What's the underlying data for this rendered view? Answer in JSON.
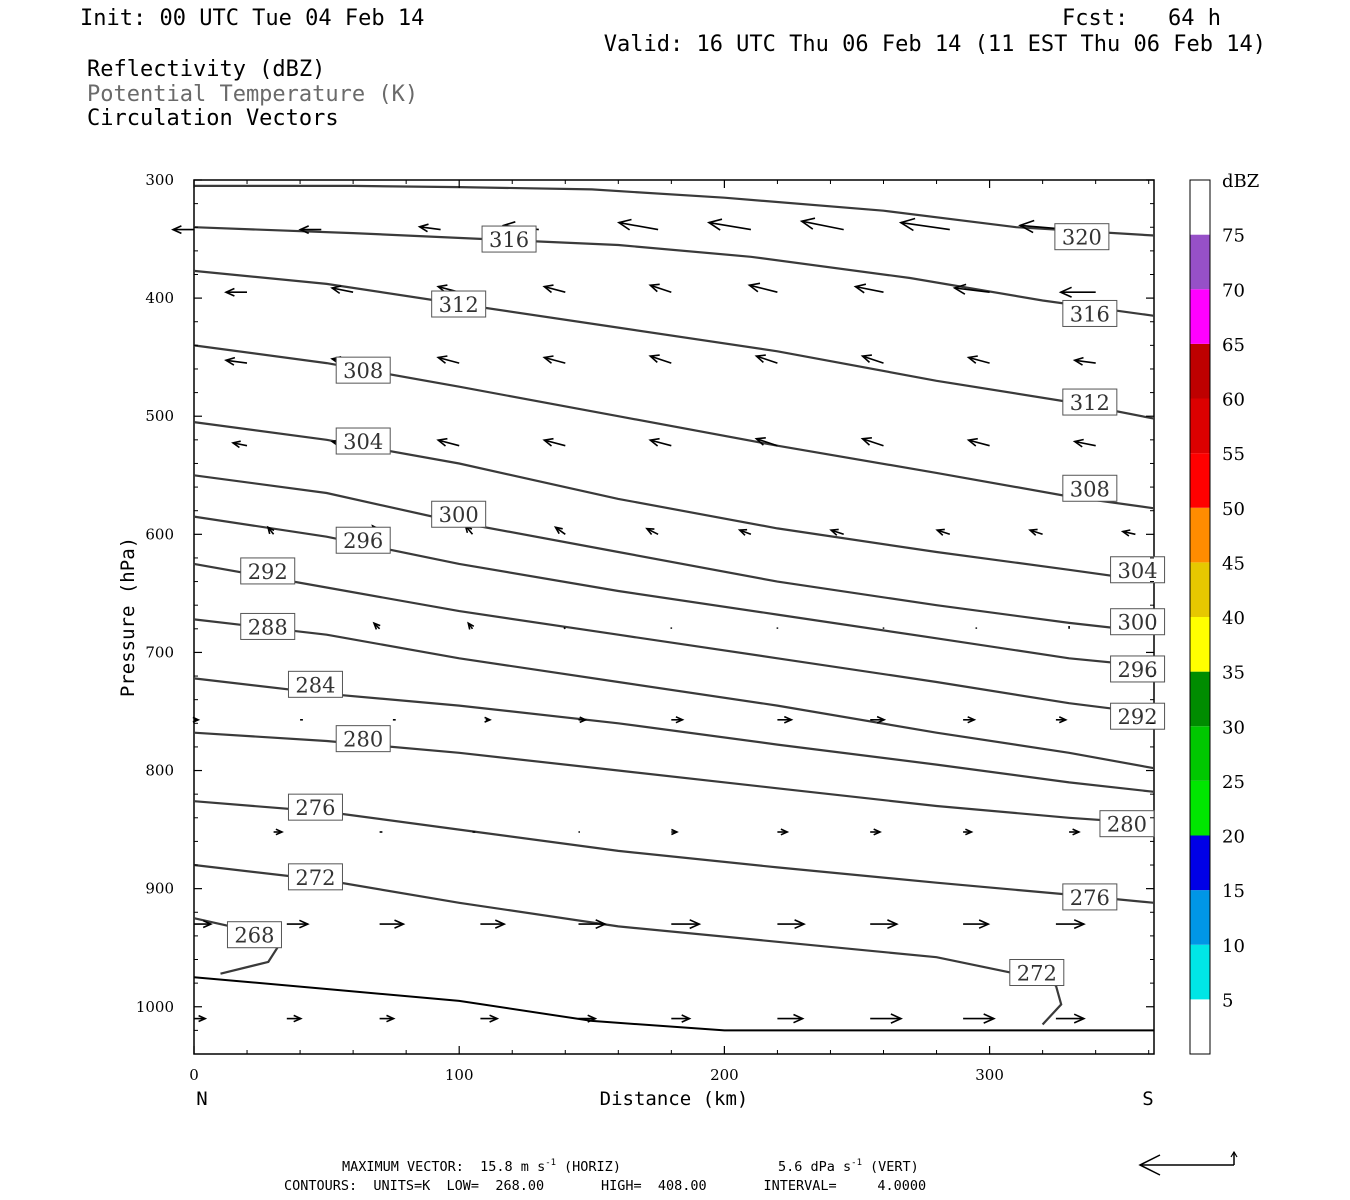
{
  "header": {
    "init": "Init: 00 UTC Tue 04 Feb 14",
    "fcst": "Fcst:   64 h",
    "valid": "Valid: 16 UTC Thu 06 Feb 14 (11 EST Thu 06 Feb 14)",
    "fields": [
      {
        "label": "Reflectivity (dBZ)",
        "color": "#000000"
      },
      {
        "label": "Potential Temperature (K)",
        "color": "#6a6a6a"
      },
      {
        "label": "Circulation Vectors",
        "color": "#000000"
      }
    ]
  },
  "chart_data": {
    "type": "line",
    "title": "",
    "xlabel": "Distance (km)",
    "ylabel": "Pressure (hPa)",
    "xlim": [
      0,
      362
    ],
    "ylim": [
      1040,
      300
    ],
    "y_inverted": true,
    "x_ticks": [
      "0",
      "100",
      "200",
      "300"
    ],
    "y_ticks": [
      "300",
      "400",
      "500",
      "600",
      "700",
      "800",
      "900",
      "1000"
    ],
    "x_end_labels": {
      "left": "N",
      "right": "S"
    },
    "isentropes": [
      {
        "theta": "320",
        "points": [
          [
            0,
            305
          ],
          [
            60,
            305
          ],
          [
            100,
            306
          ],
          [
            150,
            308
          ],
          [
            200,
            315
          ],
          [
            260,
            326
          ],
          [
            310,
            340
          ],
          [
            362,
            347
          ]
        ],
        "label_at": [
          325,
          348
        ]
      },
      {
        "theta": "316",
        "points": [
          [
            0,
            340
          ],
          [
            60,
            345
          ],
          [
            110,
            350
          ],
          [
            160,
            355
          ],
          [
            210,
            365
          ],
          [
            270,
            383
          ],
          [
            320,
            402
          ],
          [
            362,
            415
          ]
        ],
        "labels_at": [
          [
            109,
            350
          ],
          [
            328,
            413
          ]
        ]
      },
      {
        "theta": "312",
        "points": [
          [
            0,
            377
          ],
          [
            50,
            388
          ],
          [
            100,
            405
          ],
          [
            160,
            425
          ],
          [
            220,
            445
          ],
          [
            280,
            470
          ],
          [
            330,
            488
          ],
          [
            362,
            502
          ]
        ],
        "labels_at": [
          [
            90,
            405
          ],
          [
            328,
            488
          ]
        ]
      },
      {
        "theta": "308",
        "points": [
          [
            0,
            440
          ],
          [
            50,
            455
          ],
          [
            100,
            475
          ],
          [
            160,
            500
          ],
          [
            220,
            525
          ],
          [
            280,
            548
          ],
          [
            330,
            568
          ],
          [
            362,
            578
          ]
        ],
        "labels_at": [
          [
            54,
            461
          ],
          [
            328,
            561
          ]
        ]
      },
      {
        "theta": "304",
        "points": [
          [
            0,
            505
          ],
          [
            50,
            520
          ],
          [
            100,
            540
          ],
          [
            160,
            570
          ],
          [
            220,
            595
          ],
          [
            280,
            615
          ],
          [
            330,
            630
          ],
          [
            362,
            640
          ]
        ],
        "labels_at": [
          [
            54,
            521
          ],
          [
            346,
            630
          ]
        ]
      },
      {
        "theta": "300",
        "points": [
          [
            0,
            550
          ],
          [
            50,
            565
          ],
          [
            100,
            590
          ],
          [
            160,
            615
          ],
          [
            220,
            640
          ],
          [
            280,
            660
          ],
          [
            330,
            675
          ],
          [
            362,
            683
          ]
        ],
        "labels_at": [
          [
            90,
            583
          ],
          [
            346,
            674
          ]
        ]
      },
      {
        "theta": "296",
        "points": [
          [
            0,
            585
          ],
          [
            50,
            602
          ],
          [
            100,
            625
          ],
          [
            160,
            648
          ],
          [
            220,
            668
          ],
          [
            280,
            688
          ],
          [
            330,
            705
          ],
          [
            362,
            712
          ]
        ],
        "labels_at": [
          [
            54,
            605
          ],
          [
            346,
            714
          ]
        ]
      },
      {
        "theta": "292",
        "points": [
          [
            0,
            625
          ],
          [
            50,
            645
          ],
          [
            100,
            665
          ],
          [
            160,
            685
          ],
          [
            220,
            705
          ],
          [
            280,
            725
          ],
          [
            330,
            743
          ],
          [
            362,
            752
          ]
        ],
        "labels_at": [
          [
            18,
            631
          ],
          [
            346,
            754
          ]
        ]
      },
      {
        "theta": "288",
        "points": [
          [
            0,
            672
          ],
          [
            50,
            685
          ],
          [
            100,
            705
          ],
          [
            160,
            725
          ],
          [
            220,
            745
          ],
          [
            280,
            768
          ],
          [
            330,
            785
          ],
          [
            362,
            798
          ]
        ],
        "labels_at": [
          [
            18,
            678
          ]
        ]
      },
      {
        "theta": "284",
        "points": [
          [
            0,
            722
          ],
          [
            50,
            735
          ],
          [
            100,
            745
          ],
          [
            160,
            760
          ],
          [
            220,
            778
          ],
          [
            280,
            795
          ],
          [
            330,
            810
          ],
          [
            362,
            818
          ]
        ],
        "labels_at": [
          [
            36,
            727
          ]
        ]
      },
      {
        "theta": "280",
        "points": [
          [
            0,
            768
          ],
          [
            50,
            775
          ],
          [
            100,
            785
          ],
          [
            160,
            800
          ],
          [
            220,
            815
          ],
          [
            280,
            830
          ],
          [
            330,
            840
          ],
          [
            362,
            845
          ]
        ],
        "labels_at": [
          [
            54,
            773
          ],
          [
            342,
            845
          ]
        ]
      },
      {
        "theta": "276",
        "points": [
          [
            0,
            826
          ],
          [
            50,
            835
          ],
          [
            100,
            850
          ],
          [
            160,
            868
          ],
          [
            220,
            882
          ],
          [
            280,
            895
          ],
          [
            330,
            905
          ],
          [
            362,
            912
          ]
        ],
        "labels_at": [
          [
            36,
            831
          ],
          [
            328,
            907
          ]
        ]
      },
      {
        "theta": "272",
        "points": [
          [
            0,
            880
          ],
          [
            50,
            893
          ],
          [
            100,
            912
          ],
          [
            160,
            932
          ],
          [
            220,
            945
          ],
          [
            280,
            958
          ],
          [
            310,
            972
          ],
          [
            325,
            982
          ],
          [
            327,
            998
          ],
          [
            320,
            1015
          ]
        ],
        "labels_at": [
          [
            36,
            890
          ],
          [
            308,
            971
          ]
        ]
      },
      {
        "theta": "268",
        "points": [
          [
            0,
            925
          ],
          [
            20,
            935
          ],
          [
            32,
            948
          ],
          [
            28,
            962
          ],
          [
            10,
            972
          ]
        ],
        "labels_at": [
          [
            13,
            939
          ]
        ]
      }
    ],
    "surface": {
      "points": [
        [
          0,
          975
        ],
        [
          50,
          985
        ],
        [
          100,
          995
        ],
        [
          150,
          1012
        ],
        [
          200,
          1020
        ],
        [
          362,
          1020
        ]
      ]
    },
    "vector_rows": [
      {
        "p": 342,
        "x": [
          0,
          48,
          93,
          130,
          175,
          210,
          245,
          285,
          330
        ],
        "u": [
          -1.5,
          -1.5,
          -1.5,
          -2.5,
          -2.8,
          -3,
          -3,
          -3.5,
          -3.5
        ],
        "v": [
          0,
          0,
          -0.2,
          -0.3,
          -0.5,
          -0.5,
          -0.6,
          -0.5,
          -0.3
        ]
      },
      {
        "p": 395,
        "x": [
          20,
          60,
          100,
          140,
          180,
          220,
          260,
          300,
          340
        ],
        "u": [
          -1.5,
          -1.5,
          -1.5,
          -1.5,
          -1.5,
          -2,
          -2,
          -2.5,
          -2.5
        ],
        "v": [
          0,
          -0.3,
          -0.4,
          -0.4,
          -0.5,
          -0.5,
          -0.4,
          -0.3,
          0
        ]
      },
      {
        "p": 455,
        "x": [
          20,
          60,
          100,
          140,
          180,
          220,
          260,
          300,
          340
        ],
        "u": [
          -1.5,
          -1.5,
          -1.5,
          -1.5,
          -1.5,
          -1.5,
          -1.5,
          -1.5,
          -1.5
        ],
        "v": [
          -0.2,
          -0.3,
          -0.4,
          -0.4,
          -0.5,
          -0.5,
          -0.5,
          -0.4,
          -0.2
        ]
      },
      {
        "p": 525,
        "x": [
          20,
          60,
          100,
          140,
          180,
          220,
          260,
          300,
          340
        ],
        "u": [
          -1,
          -1.5,
          -1.5,
          -1.5,
          -1.5,
          -1.5,
          -1.5,
          -1.5,
          -1.5
        ],
        "v": [
          -0.2,
          -0.3,
          -0.4,
          -0.4,
          -0.4,
          -0.5,
          -0.5,
          -0.4,
          -0.3
        ]
      },
      {
        "p": 600,
        "x": [
          30,
          70,
          105,
          140,
          175,
          210,
          245,
          285,
          320,
          355
        ],
        "u": [
          -0.4,
          -0.5,
          -0.5,
          -0.7,
          -0.8,
          -0.8,
          -0.9,
          -0.9,
          -0.9,
          -0.9
        ],
        "v": [
          -0.5,
          -0.6,
          -0.6,
          -0.5,
          -0.4,
          -0.3,
          -0.3,
          -0.3,
          -0.3,
          -0.2
        ]
      },
      {
        "p": 680,
        "x": [
          30,
          70,
          105,
          140,
          180,
          220,
          260,
          295,
          330
        ],
        "u": [
          -0.5,
          -0.4,
          -0.3,
          -0.1,
          0,
          0,
          0,
          0,
          0
        ],
        "v": [
          -0.4,
          -0.4,
          -0.4,
          -0.1,
          -0.1,
          -0.1,
          -0.1,
          -0.1,
          -0.2
        ]
      },
      {
        "p": 757,
        "x": [
          0,
          40,
          75,
          110,
          145,
          180,
          220,
          255,
          290,
          325
        ],
        "u": [
          0.3,
          0.2,
          0.2,
          0.3,
          0.5,
          0.8,
          1,
          1,
          0.8,
          0.7
        ],
        "v": [
          0,
          0,
          0,
          0,
          0,
          0,
          0,
          0,
          0,
          0
        ]
      },
      {
        "p": 852,
        "x": [
          30,
          70,
          105,
          145,
          180,
          220,
          255,
          290,
          330
        ],
        "u": [
          0.6,
          0.2,
          0.2,
          0.1,
          0.4,
          0.7,
          0.7,
          0.6,
          0.7
        ],
        "v": [
          0,
          0,
          0,
          0,
          0,
          0,
          0,
          0,
          0
        ]
      },
      {
        "p": 930,
        "x": [
          0,
          35,
          70,
          108,
          145,
          180,
          220,
          255,
          290,
          325
        ],
        "u": [
          1.2,
          1.5,
          1.7,
          1.7,
          1.9,
          2,
          1.9,
          1.9,
          1.8,
          2
        ],
        "v": [
          0,
          0,
          0,
          0,
          0,
          0,
          0,
          0,
          0,
          0
        ]
      },
      {
        "p": 1010,
        "x": [
          0,
          35,
          70,
          108,
          145,
          180,
          220,
          255,
          290,
          325
        ],
        "u": [
          0.8,
          1,
          1,
          1.2,
          1.2,
          1.3,
          1.8,
          2.2,
          2.2,
          2
        ],
        "v": [
          0,
          0,
          0,
          0,
          0,
          0,
          0,
          0,
          0,
          0
        ]
      }
    ],
    "colorbar": {
      "units": "dBZ",
      "levels": [
        "5",
        "10",
        "15",
        "20",
        "25",
        "30",
        "35",
        "40",
        "45",
        "50",
        "55",
        "60",
        "65",
        "70",
        "75"
      ],
      "colors": [
        "#00e6e6",
        "#0096e6",
        "#0000e6",
        "#00e600",
        "#00c800",
        "#008c00",
        "#ffff00",
        "#e6c800",
        "#ff8c00",
        "#ff0000",
        "#dc0000",
        "#be0000",
        "#ff00ff",
        "#9650c8"
      ]
    }
  },
  "footer": {
    "max_vector_prefix": "MAXIMUM VECTOR:  15.8 m s",
    "sup": "-1",
    "horiz": "(HORIZ)",
    "vert_prefix": "5.6 dPa s",
    "vert": "(VERT)",
    "contours": "CONTOURS:  UNITS=K  LOW=  268.00       HIGH=  408.00       INTERVAL=     4.0000"
  }
}
